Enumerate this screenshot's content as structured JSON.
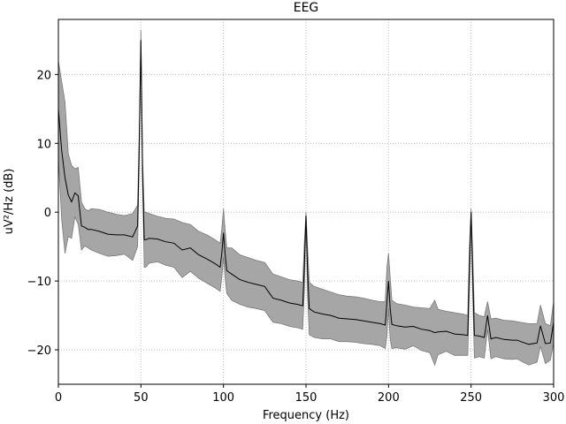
{
  "chart_data": {
    "type": "line",
    "title": "EEG",
    "xlabel": "Frequency (Hz)",
    "ylabel": "uV²/Hz (dB)",
    "xlim": [
      0,
      300
    ],
    "ylim": [
      -25,
      28
    ],
    "xticks": [
      0,
      50,
      100,
      150,
      200,
      250,
      300
    ],
    "yticks": [
      -20,
      -10,
      0,
      10,
      20
    ],
    "grid": true,
    "colors": {
      "mean_line": "#000000",
      "band_fill": "#a6a6a6",
      "band_edge": "#7a7a7a",
      "grid": "#b0b0b0"
    },
    "series": [
      {
        "x": [
          0,
          2,
          4,
          6,
          8,
          10,
          12,
          14,
          16,
          18,
          20,
          25,
          30,
          35,
          40,
          45,
          48,
          49,
          50,
          51,
          52,
          53,
          55,
          60,
          65,
          70,
          75,
          80,
          85,
          90,
          95,
          98,
          99,
          100,
          101,
          102,
          105,
          110,
          115,
          120,
          125,
          130,
          135,
          140,
          145,
          148,
          149,
          150,
          151,
          152,
          155,
          160,
          165,
          170,
          175,
          180,
          185,
          190,
          195,
          198,
          199,
          200,
          201,
          202,
          205,
          210,
          215,
          220,
          225,
          228,
          230,
          235,
          240,
          245,
          248,
          249,
          250,
          251,
          252,
          255,
          258,
          260,
          262,
          265,
          270,
          275,
          278,
          280,
          285,
          290,
          292,
          295,
          298,
          300
        ],
        "mean": [
          15,
          9,
          5,
          2.5,
          1.5,
          2.8,
          2.4,
          -2,
          -2.2,
          -2.5,
          -2.5,
          -2.8,
          -3.2,
          -3.3,
          -3.3,
          -3.6,
          -2,
          10,
          25,
          6,
          -4,
          -4,
          -3.8,
          -3.9,
          -4.3,
          -4.5,
          -5.5,
          -5.2,
          -6.2,
          -6.8,
          -7.5,
          -8,
          -6,
          -3,
          -6,
          -8.5,
          -9,
          -9.8,
          -10.2,
          -10.5,
          -10.8,
          -12.5,
          -12.8,
          -13.2,
          -13.4,
          -13.6,
          -8,
          -0.5,
          -9,
          -14,
          -14.5,
          -14.8,
          -15,
          -15.4,
          -15.5,
          -15.6,
          -15.8,
          -16,
          -16.2,
          -16.4,
          -13,
          -10,
          -14,
          -16.3,
          -16.5,
          -16.7,
          -16.6,
          -17,
          -17.2,
          -17.5,
          -17.4,
          -17.3,
          -17.7,
          -17.8,
          -17.9,
          -8,
          0,
          -9,
          -17.9,
          -18,
          -18.2,
          -15,
          -18.4,
          -18.2,
          -18.5,
          -18.6,
          -18.6,
          -18.8,
          -19.2,
          -19,
          -16.5,
          -19.1,
          -19,
          -16
        ]
      }
    ],
    "band_upper": [
      22,
      19,
      16,
      8.5,
      6.8,
      6.3,
      6.5,
      1.5,
      0.5,
      0.2,
      0.5,
      0.4,
      0,
      -0.3,
      -0.5,
      -0.2,
      1,
      12,
      26.5,
      8,
      0,
      0,
      -0.2,
      -0.6,
      -0.9,
      -1,
      -1.5,
      -1.8,
      -2.8,
      -3.3,
      -4,
      -4.5,
      -2.5,
      0.5,
      -2.5,
      -5.2,
      -5.2,
      -6.2,
      -6.6,
      -7,
      -7.3,
      -9,
      -9.4,
      -9.8,
      -10,
      -10.2,
      -4.5,
      0,
      -5.5,
      -10.2,
      -10.8,
      -11.2,
      -11.6,
      -12,
      -12.2,
      -12.3,
      -12.5,
      -12.8,
      -13,
      -13,
      -8,
      -6,
      -9.5,
      -12.8,
      -13.3,
      -13.5,
      -13.8,
      -13.9,
      -14,
      -12.8,
      -14.1,
      -14.4,
      -14.6,
      -14.8,
      -15,
      -5,
      0.5,
      -6,
      -14.6,
      -15,
      -15.2,
      -13,
      -15.5,
      -15.4,
      -15.7,
      -15.8,
      -15.9,
      -16,
      -16.2,
      -16.2,
      -13.5,
      -16.2,
      -16.5,
      -13
    ]
  }
}
